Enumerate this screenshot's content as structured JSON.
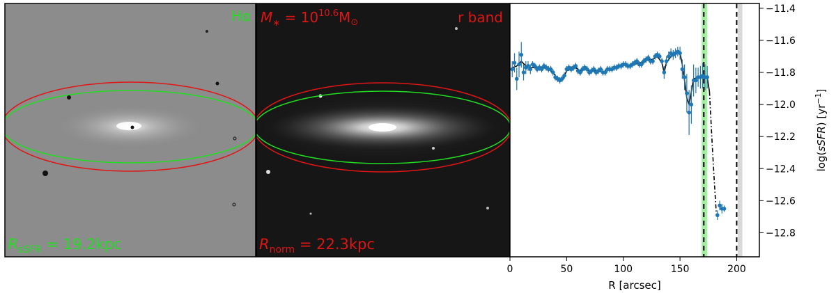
{
  "colors": {
    "halpha_label": "#22dd22",
    "rband_label": "#e01515",
    "series": "#1f77b4",
    "green_ellipse": "#22dd22",
    "red_ellipse": "#e01515",
    "green_band": "#90ee90",
    "gray_band": "#d9d9d9"
  },
  "panels": {
    "halpha": {
      "label": "Hα",
      "radius_label_main": "R",
      "radius_label_sub": "sSFR",
      "radius_label_value": " = 19.2kpc"
    },
    "rband": {
      "label": "r band",
      "mass_label_main": "M",
      "mass_label_star": "∗",
      "mass_label_eq": " = 10",
      "mass_label_exp": "10.6",
      "mass_label_unit": "M",
      "mass_label_unit_sub": "⊙",
      "radius_label_main": "R",
      "radius_label_sub": "norm",
      "radius_label_value": " = 22.3kpc"
    }
  },
  "chart_data": {
    "type": "line",
    "xlabel": "R [arcsec]",
    "ylabel_prefix": "log(",
    "ylabel_italic": "sSFR",
    "ylabel_suffix": ") [yr",
    "ylabel_sup": "−1",
    "ylabel_close": "]",
    "xlim": [
      0,
      220
    ],
    "ylim": [
      -12.95,
      -11.37
    ],
    "xticks": [
      0,
      50,
      100,
      150,
      200
    ],
    "yticks": [
      -11.4,
      -11.6,
      -11.8,
      -12.0,
      -12.2,
      -12.4,
      -12.6,
      -12.8
    ],
    "ytick_labels": [
      "−11.4",
      "−11.6",
      "−11.8",
      "−12.0",
      "−12.2",
      "−12.4",
      "−12.6",
      "−12.8"
    ],
    "green_band": [
      169,
      174
    ],
    "green_dashed_x": 171,
    "black_dashed_x": 200,
    "gray_band": [
      201,
      205
    ],
    "series": [
      {
        "x": [
          2,
          4,
          6,
          8,
          10,
          12,
          14,
          16,
          18,
          20,
          22,
          24,
          26,
          28,
          30,
          32,
          34,
          36,
          38,
          40,
          42,
          44,
          46,
          48,
          50,
          52,
          54,
          56,
          58,
          60,
          62,
          64,
          66,
          68,
          70,
          72,
          74,
          76,
          78,
          80,
          82,
          84,
          86,
          88,
          90,
          92,
          94,
          96,
          98,
          100,
          102,
          104,
          106,
          108,
          110,
          112,
          114,
          116,
          118,
          120,
          122,
          124,
          126,
          128,
          130,
          132,
          134,
          136,
          138,
          140,
          142,
          144,
          146,
          148,
          150,
          152,
          154,
          156,
          158,
          160,
          162,
          164,
          166,
          168,
          170,
          172,
          174
        ],
        "y": [
          -11.78,
          -11.74,
          -11.84,
          -11.75,
          -11.69,
          -11.8,
          -11.77,
          -11.76,
          -11.78,
          -11.75,
          -11.76,
          -11.78,
          -11.77,
          -11.78,
          -11.76,
          -11.77,
          -11.78,
          -11.78,
          -11.8,
          -11.83,
          -11.84,
          -11.85,
          -11.84,
          -11.82,
          -11.78,
          -11.77,
          -11.78,
          -11.77,
          -11.76,
          -11.79,
          -11.8,
          -11.78,
          -11.77,
          -11.78,
          -11.8,
          -11.79,
          -11.78,
          -11.8,
          -11.79,
          -11.78,
          -11.8,
          -11.8,
          -11.78,
          -11.78,
          -11.78,
          -11.77,
          -11.77,
          -11.76,
          -11.76,
          -11.75,
          -11.75,
          -11.76,
          -11.76,
          -11.75,
          -11.74,
          -11.73,
          -11.75,
          -11.75,
          -11.73,
          -11.72,
          -11.71,
          -11.73,
          -11.73,
          -11.7,
          -11.69,
          -11.7,
          -11.73,
          -11.8,
          -11.73,
          -11.7,
          -11.68,
          -11.69,
          -11.68,
          -11.67,
          -11.68,
          -11.78,
          -11.83,
          -11.93,
          -12.05,
          -12.0,
          -11.85,
          -11.85,
          -11.83,
          -11.83,
          -11.82,
          -11.83,
          -11.83
        ],
        "yerr": [
          0.05,
          0.06,
          0.07,
          0.08,
          0.08,
          0.05,
          0.04,
          0.03,
          0.03,
          0.02,
          0.02,
          0.02,
          0.02,
          0.02,
          0.02,
          0.02,
          0.02,
          0.02,
          0.02,
          0.02,
          0.02,
          0.02,
          0.02,
          0.02,
          0.02,
          0.02,
          0.02,
          0.02,
          0.02,
          0.02,
          0.02,
          0.02,
          0.02,
          0.02,
          0.02,
          0.02,
          0.02,
          0.02,
          0.02,
          0.02,
          0.02,
          0.02,
          0.02,
          0.02,
          0.02,
          0.02,
          0.02,
          0.02,
          0.02,
          0.02,
          0.02,
          0.02,
          0.02,
          0.02,
          0.02,
          0.02,
          0.02,
          0.02,
          0.02,
          0.02,
          0.02,
          0.02,
          0.02,
          0.02,
          0.02,
          0.02,
          0.02,
          0.04,
          0.03,
          0.03,
          0.03,
          0.03,
          0.03,
          0.03,
          0.04,
          0.06,
          0.08,
          0.12,
          0.14,
          0.12,
          0.1,
          0.08,
          0.06,
          0.07,
          0.08,
          0.08,
          0.07
        ]
      },
      {
        "x": [
          183,
          185,
          187,
          189
        ],
        "y": [
          -12.69,
          -12.63,
          -12.65,
          -12.65
        ],
        "yerr": [
          0.03,
          0.03,
          0.03,
          0.02
        ]
      }
    ],
    "model_line": {
      "x": [
        2,
        6,
        10,
        14,
        18,
        22,
        26,
        30,
        34,
        38,
        42,
        46,
        50,
        54,
        58,
        62,
        66,
        70,
        74,
        78,
        82,
        86,
        90,
        94,
        98,
        102,
        106,
        110,
        114,
        118,
        122,
        126,
        130,
        134,
        136,
        138,
        142,
        146,
        148,
        150,
        152,
        154,
        156,
        158,
        160,
        162,
        166,
        170,
        174,
        176
      ],
      "y": [
        -11.77,
        -11.76,
        -11.73,
        -11.76,
        -11.77,
        -11.77,
        -11.77,
        -11.77,
        -11.78,
        -11.8,
        -11.84,
        -11.85,
        -11.79,
        -11.78,
        -11.77,
        -11.79,
        -11.78,
        -11.79,
        -11.79,
        -11.79,
        -11.8,
        -11.78,
        -11.78,
        -11.77,
        -11.76,
        -11.75,
        -11.76,
        -11.75,
        -11.74,
        -11.74,
        -11.72,
        -11.72,
        -11.7,
        -11.74,
        -11.8,
        -11.74,
        -11.7,
        -11.69,
        -11.67,
        -11.68,
        -11.75,
        -11.85,
        -11.96,
        -12.0,
        -11.92,
        -11.84,
        -11.83,
        -11.82,
        -11.83,
        -11.92
      ]
    },
    "model_dashdot": {
      "x": [
        176,
        178,
        180,
        182,
        184
      ],
      "y": [
        -11.92,
        -12.2,
        -12.45,
        -12.68,
        -12.7
      ]
    }
  }
}
